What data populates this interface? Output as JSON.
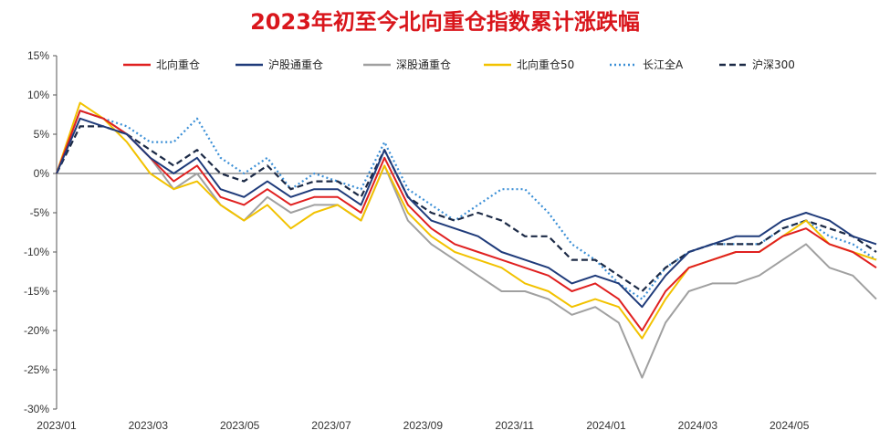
{
  "chart_data": {
    "type": "line",
    "title": "2023年初至今北向重仓指数累计涨跌幅",
    "xlabel": "",
    "ylabel": "",
    "ylim": [
      -30,
      15
    ],
    "y_ticks": [
      15,
      10,
      5,
      0,
      -5,
      -10,
      -15,
      -20,
      -25,
      -30
    ],
    "y_tick_labels": [
      "15%",
      "10%",
      "5%",
      "0%",
      "-5%",
      "-10%",
      "-15%",
      "-20%",
      "-25%",
      "-30%"
    ],
    "x_tick_labels": [
      "2023/01",
      "2023/03",
      "2023/05",
      "2023/07",
      "2023/09",
      "2023/11",
      "2024/01",
      "2024/03",
      "2024/05"
    ],
    "x": [
      "2023/01",
      "2023/01",
      "2023/02",
      "2023/02",
      "2023/03",
      "2023/03",
      "2023/04",
      "2023/04",
      "2023/05",
      "2023/05",
      "2023/06",
      "2023/06",
      "2023/07",
      "2023/07",
      "2023/08",
      "2023/08",
      "2023/09",
      "2023/09",
      "2023/10",
      "2023/10",
      "2023/11",
      "2023/11",
      "2023/12",
      "2023/12",
      "2024/01",
      "2024/01",
      "2024/02",
      "2024/02",
      "2024/03",
      "2024/03",
      "2024/04",
      "2024/04",
      "2024/05",
      "2024/05",
      "2024/06",
      "2024/06"
    ],
    "grid": false,
    "legend_position": "top",
    "series": [
      {
        "name": "北向重仓",
        "color": "#e02020",
        "dash": "solid",
        "values": [
          0,
          8,
          7,
          5,
          2,
          -1,
          1,
          -3,
          -4,
          -2,
          -4,
          -3,
          -3,
          -5,
          2,
          -4,
          -7,
          -9,
          -10,
          -11,
          -12,
          -13,
          -15,
          -14,
          -16,
          -20,
          -15,
          -12,
          -11,
          -10,
          -10,
          -8,
          -7,
          -9,
          -10,
          -12
        ]
      },
      {
        "name": "沪股通重仓",
        "color": "#1f3b7a",
        "dash": "solid",
        "values": [
          0,
          7,
          6,
          5,
          2,
          0,
          2,
          -2,
          -3,
          -1,
          -3,
          -2,
          -2,
          -4,
          3,
          -3,
          -6,
          -7,
          -8,
          -10,
          -11,
          -12,
          -14,
          -13,
          -14,
          -17,
          -13,
          -10,
          -9,
          -8,
          -8,
          -6,
          -5,
          -6,
          -8,
          -9
        ]
      },
      {
        "name": "深股通重仓",
        "color": "#a0a0a0",
        "dash": "solid",
        "values": [
          0,
          8,
          7,
          5,
          2,
          -2,
          0,
          -4,
          -6,
          -3,
          -5,
          -4,
          -4,
          -6,
          1,
          -6,
          -9,
          -11,
          -13,
          -15,
          -15,
          -16,
          -18,
          -17,
          -19,
          -26,
          -19,
          -15,
          -14,
          -14,
          -13,
          -11,
          -9,
          -12,
          -13,
          -16
        ]
      },
      {
        "name": "北向重仓50",
        "color": "#f2c200",
        "dash": "solid",
        "values": [
          0,
          9,
          7,
          4,
          0,
          -2,
          -1,
          -4,
          -6,
          -4,
          -7,
          -5,
          -4,
          -6,
          1,
          -5,
          -8,
          -10,
          -11,
          -12,
          -14,
          -15,
          -17,
          -16,
          -17,
          -21,
          -16,
          -12,
          -11,
          -10,
          -10,
          -8,
          -6,
          -9,
          -10,
          -11
        ]
      },
      {
        "name": "长江全A",
        "color": "#3b8fd6",
        "dash": "dot",
        "values": [
          0,
          8,
          7,
          6,
          4,
          4,
          7,
          2,
          0,
          2,
          -2,
          0,
          -1,
          -2,
          4,
          -2,
          -4,
          -6,
          -4,
          -2,
          -2,
          -5,
          -9,
          -11,
          -14,
          -16,
          -12,
          -10,
          -9,
          -9,
          -9,
          -7,
          -6,
          -8,
          -9,
          -11
        ]
      },
      {
        "name": "沪深300",
        "color": "#1c2a46",
        "dash": "dash",
        "values": [
          0,
          6,
          6,
          5,
          3,
          1,
          3,
          0,
          -1,
          1,
          -2,
          -1,
          -1,
          -3,
          3,
          -3,
          -5,
          -6,
          -5,
          -6,
          -8,
          -8,
          -11,
          -11,
          -13,
          -15,
          -12,
          -10,
          -9,
          -9,
          -9,
          -7,
          -6,
          -7,
          -8,
          -10
        ]
      }
    ]
  }
}
